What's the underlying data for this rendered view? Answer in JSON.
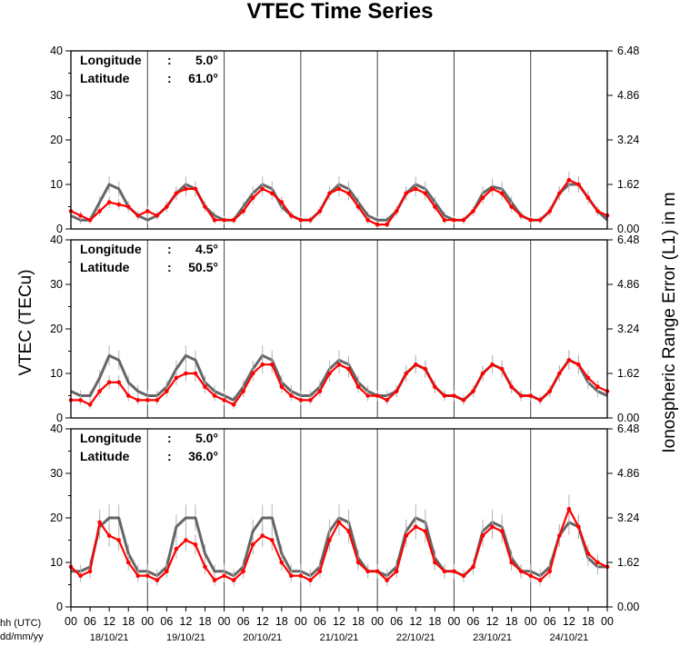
{
  "chart_data": {
    "type": "line",
    "title": "VTEC Time Series",
    "ylabel": "VTEC (TECu)",
    "ylabel_right": "Ionospheric Range Error (L1) in m",
    "corner_labels": [
      "hh (UTC)",
      "dd/mm/yy"
    ],
    "x_hour_ticks": [
      "00",
      "06",
      "12",
      "18"
    ],
    "x_final_tick": "00",
    "dates": [
      "18/10/21",
      "19/10/21",
      "20/10/21",
      "21/10/21",
      "22/10/21",
      "23/10/21",
      "24/10/21"
    ],
    "x_unit": "hours since 18/10/21 00 UTC",
    "xlim": [
      0,
      168
    ],
    "ylim": [
      0,
      40
    ],
    "yticks": [
      0,
      10,
      20,
      30,
      40
    ],
    "yticks_right": [
      "0.00",
      "1.62",
      "3.24",
      "4.86",
      "6.48"
    ],
    "grid": "vertical lines at day boundaries",
    "series_colors": {
      "reference": "#666666",
      "observed": "#ff0000",
      "error_bars": "#b4b4b4"
    },
    "panels": [
      {
        "longitude_label": "Longitude",
        "longitude_value": "5.0°",
        "latitude_label": "Latitude",
        "latitude_value": "61.0°",
        "series": [
          {
            "role": "reference",
            "x": [
              0,
              3,
              6,
              9,
              12,
              15,
              18,
              21,
              24,
              27,
              30,
              33,
              36,
              39,
              42,
              45,
              48,
              51,
              54,
              57,
              60,
              63,
              66,
              69,
              72,
              75,
              78,
              81,
              84,
              87,
              90,
              93,
              96,
              99,
              102,
              105,
              108,
              111,
              114,
              117,
              120,
              123,
              126,
              129,
              132,
              135,
              138,
              141,
              144,
              147,
              150,
              153,
              156,
              159,
              162,
              165,
              168
            ],
            "y": [
              3,
              2,
              2,
              6,
              10,
              9,
              5,
              3,
              2,
              3,
              5,
              8,
              10,
              9,
              5,
              3,
              2,
              2,
              5,
              8,
              10,
              9,
              5,
              3,
              2,
              2,
              4,
              8,
              10,
              9,
              6,
              3,
              2,
              2,
              4,
              8,
              10,
              9,
              6,
              3,
              2,
              2,
              4,
              8,
              9.5,
              9,
              6,
              3,
              2,
              2,
              4,
              8,
              10,
              10,
              7,
              4,
              2
            ]
          },
          {
            "role": "observed",
            "x": [
              0,
              3,
              6,
              9,
              12,
              15,
              18,
              21,
              24,
              27,
              30,
              33,
              36,
              39,
              42,
              45,
              48,
              51,
              54,
              57,
              60,
              63,
              66,
              69,
              72,
              75,
              78,
              81,
              84,
              87,
              90,
              93,
              96,
              99,
              102,
              105,
              108,
              111,
              114,
              117,
              120,
              123,
              126,
              129,
              132,
              135,
              138,
              141,
              144,
              147,
              150,
              153,
              156,
              159,
              162,
              165,
              168
            ],
            "y": [
              4,
              3,
              2,
              4,
              6,
              5.5,
              5,
              3,
              4,
              3,
              5,
              8,
              9,
              9,
              5,
              2,
              2,
              2,
              4,
              7,
              9,
              8,
              6,
              3,
              2,
              2,
              4,
              8,
              9,
              8,
              5,
              2,
              1,
              1,
              4,
              8,
              9,
              8,
              5,
              2,
              2,
              2,
              4,
              7,
              9,
              8,
              5,
              3,
              2,
              2,
              4,
              8,
              11,
              10,
              7,
              4,
              3
            ]
          }
        ]
      },
      {
        "longitude_label": "Longitude",
        "longitude_value": "4.5°",
        "latitude_label": "Latitude",
        "latitude_value": "50.5°",
        "series": [
          {
            "role": "reference",
            "x": [
              0,
              3,
              6,
              9,
              12,
              15,
              18,
              21,
              24,
              27,
              30,
              33,
              36,
              39,
              42,
              45,
              48,
              51,
              54,
              57,
              60,
              63,
              66,
              69,
              72,
              75,
              78,
              81,
              84,
              87,
              90,
              93,
              96,
              99,
              102,
              105,
              108,
              111,
              114,
              117,
              120,
              123,
              126,
              129,
              132,
              135,
              138,
              141,
              144,
              147,
              150,
              153,
              156,
              159,
              162,
              165,
              168
            ],
            "y": [
              6,
              5,
              5,
              9,
              14,
              13,
              8,
              6,
              5,
              5,
              7,
              11,
              14,
              13,
              8,
              6,
              5,
              4,
              7,
              11,
              14,
              13,
              8,
              6,
              5,
              5,
              7,
              11,
              13,
              12,
              8,
              6,
              5,
              5,
              6,
              10,
              12,
              11,
              7,
              5,
              5,
              4,
              6,
              10,
              12,
              11,
              7,
              5,
              5,
              4,
              6,
              10,
              13,
              12,
              8,
              6,
              5
            ]
          },
          {
            "role": "observed",
            "x": [
              0,
              3,
              6,
              9,
              12,
              15,
              18,
              21,
              24,
              27,
              30,
              33,
              36,
              39,
              42,
              45,
              48,
              51,
              54,
              57,
              60,
              63,
              66,
              69,
              72,
              75,
              78,
              81,
              84,
              87,
              90,
              93,
              96,
              99,
              102,
              105,
              108,
              111,
              114,
              117,
              120,
              123,
              126,
              129,
              132,
              135,
              138,
              141,
              144,
              147,
              150,
              153,
              156,
              159,
              162,
              165,
              168
            ],
            "y": [
              4,
              4,
              3,
              6,
              8,
              8,
              5,
              4,
              4,
              4,
              6,
              9,
              10,
              10,
              7,
              5,
              4,
              3,
              6,
              10,
              12,
              12,
              7,
              5,
              4,
              4,
              6,
              10,
              12,
              11,
              7,
              5,
              5,
              4,
              6,
              10,
              12,
              11,
              7,
              5,
              5,
              4,
              6,
              10,
              12,
              11,
              7,
              5,
              5,
              4,
              6,
              10,
              13,
              12,
              9,
              7,
              6
            ]
          }
        ]
      },
      {
        "longitude_label": "Longitude",
        "longitude_value": "5.0°",
        "latitude_label": "Latitude",
        "latitude_value": "36.0°",
        "series": [
          {
            "role": "reference",
            "x": [
              0,
              3,
              6,
              9,
              12,
              15,
              18,
              21,
              24,
              27,
              30,
              33,
              36,
              39,
              42,
              45,
              48,
              51,
              54,
              57,
              60,
              63,
              66,
              69,
              72,
              75,
              78,
              81,
              84,
              87,
              90,
              93,
              96,
              99,
              102,
              105,
              108,
              111,
              114,
              117,
              120,
              123,
              126,
              129,
              132,
              135,
              138,
              141,
              144,
              147,
              150,
              153,
              156,
              159,
              162,
              165,
              168
            ],
            "y": [
              8,
              8,
              9,
              18,
              20,
              20,
              12,
              8,
              8,
              7,
              9,
              18,
              20,
              20,
              12,
              8,
              8,
              7,
              9,
              17,
              20,
              20,
              12,
              8,
              8,
              7,
              9,
              17,
              20,
              19,
              11,
              8,
              8,
              7,
              9,
              17,
              20,
              19,
              11,
              8,
              8,
              7,
              9,
              17,
              19,
              18,
              11,
              8,
              8,
              7,
              9,
              16,
              19,
              18,
              11,
              9,
              9
            ]
          },
          {
            "role": "observed",
            "x": [
              0,
              3,
              6,
              9,
              12,
              15,
              18,
              21,
              24,
              27,
              30,
              33,
              36,
              39,
              42,
              45,
              48,
              51,
              54,
              57,
              60,
              63,
              66,
              69,
              72,
              75,
              78,
              81,
              84,
              87,
              90,
              93,
              96,
              99,
              102,
              105,
              108,
              111,
              114,
              117,
              120,
              123,
              126,
              129,
              132,
              135,
              138,
              141,
              144,
              147,
              150,
              153,
              156,
              159,
              162,
              165,
              168
            ],
            "y": [
              9,
              7,
              8,
              19,
              16,
              15,
              10,
              7,
              7,
              6,
              8,
              13,
              15,
              14,
              9,
              6,
              7,
              6,
              8,
              14,
              16,
              15,
              10,
              7,
              7,
              6,
              8,
              15,
              19,
              17,
              10,
              8,
              8,
              6,
              8,
              16,
              18,
              17,
              10,
              8,
              8,
              7,
              9,
              16,
              18,
              17,
              10,
              8,
              7,
              6,
              8,
              16,
              22,
              18,
              12,
              10,
              9
            ]
          }
        ]
      }
    ]
  }
}
